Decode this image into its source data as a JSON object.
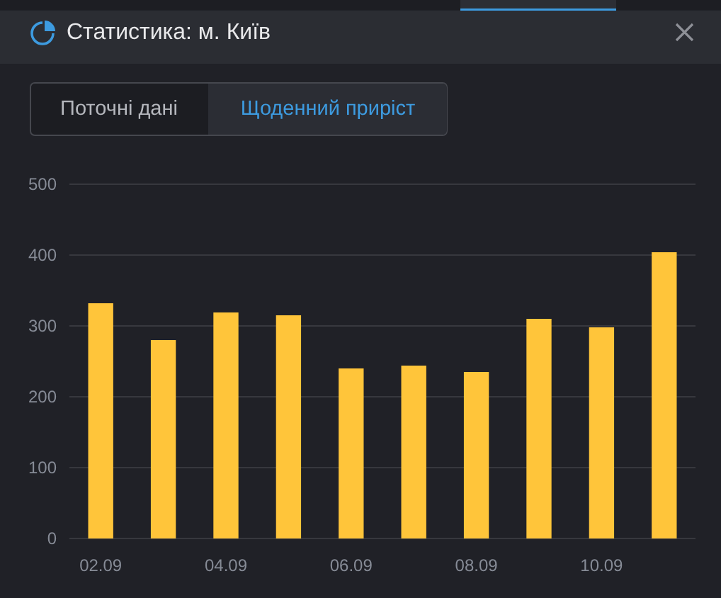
{
  "chart_data": {
    "type": "bar",
    "title": "Статистика: м. Київ",
    "annotations": [
      "Поточні дані",
      "Щоденний приріст"
    ],
    "categories": [
      "02.09",
      null,
      "04.09",
      null,
      "06.09",
      null,
      "08.09",
      null,
      "10.09",
      null
    ],
    "values": [
      332,
      280,
      319,
      315,
      240,
      244,
      235,
      310,
      298,
      404
    ],
    "color": "#ffc53a",
    "ylim": [
      0,
      500
    ],
    "yticks": [
      0,
      100,
      200,
      300,
      400,
      500
    ],
    "grid": "y"
  }
}
